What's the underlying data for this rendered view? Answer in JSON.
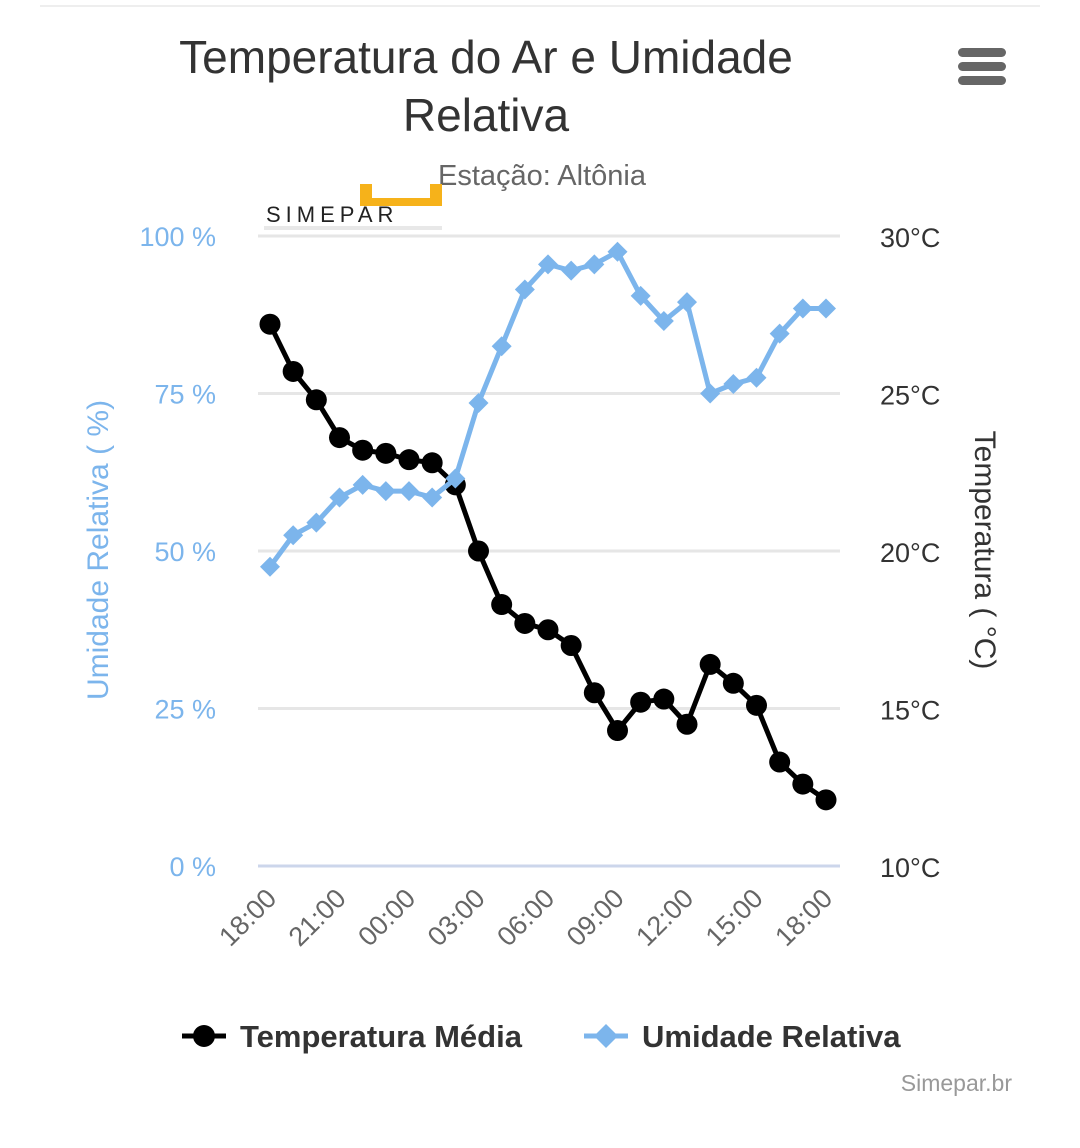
{
  "title": "Temperatura do Ar e Umidade Relativa",
  "subtitle": "Estação: Altônia",
  "credits": "Simepar.br",
  "logo_text": "SIMEPAR",
  "icons": {
    "menu": "hamburger-menu-icon"
  },
  "colors": {
    "temperature": "#000000",
    "humidity": "#7cb5ec",
    "gridline": "#e6e6e6",
    "axis_text": "#666666"
  },
  "chart_data": {
    "type": "line",
    "categories": [
      "18:00",
      "19:00",
      "20:00",
      "21:00",
      "22:00",
      "23:00",
      "00:00",
      "01:00",
      "02:00",
      "03:00",
      "04:00",
      "05:00",
      "06:00",
      "07:00",
      "08:00",
      "09:00",
      "10:00",
      "11:00",
      "12:00",
      "13:00",
      "14:00",
      "15:00",
      "16:00",
      "17:00",
      "18:00"
    ],
    "x_tick_labels": [
      "18:00",
      "21:00",
      "00:00",
      "03:00",
      "06:00",
      "09:00",
      "12:00",
      "15:00",
      "18:00"
    ],
    "yaxis_left": {
      "title": "Umidade Relativa ( %)",
      "min": 0,
      "max": 100,
      "ticks": [
        "0 %",
        "25 %",
        "50 %",
        "75 %",
        "100 %"
      ]
    },
    "yaxis_right": {
      "title": "Temperatura ( °C)",
      "min": 10,
      "max": 30,
      "ticks": [
        "10°C",
        "15°C",
        "20°C",
        "25°C",
        "30°C"
      ]
    },
    "grid": true,
    "legend_position": "bottom",
    "series": [
      {
        "name": "Temperatura Média",
        "axis": "right",
        "marker": "circle",
        "values": [
          27.2,
          25.7,
          24.8,
          23.6,
          23.2,
          23.1,
          22.9,
          22.8,
          22.1,
          20.0,
          18.3,
          17.7,
          17.5,
          17.0,
          15.5,
          14.3,
          15.2,
          15.3,
          14.5,
          16.4,
          15.8,
          15.1,
          13.3,
          12.6,
          12.1
        ]
      },
      {
        "name": "Umidade Relativa",
        "axis": "left",
        "marker": "diamond",
        "values": [
          47.5,
          52.5,
          54.5,
          58.5,
          60.5,
          59.5,
          59.5,
          58.5,
          61.5,
          73.5,
          82.5,
          91.5,
          95.5,
          94.5,
          95.5,
          97.5,
          90.5,
          86.5,
          89.5,
          75.0,
          76.5,
          77.5,
          84.5,
          88.5,
          88.5
        ]
      }
    ]
  }
}
